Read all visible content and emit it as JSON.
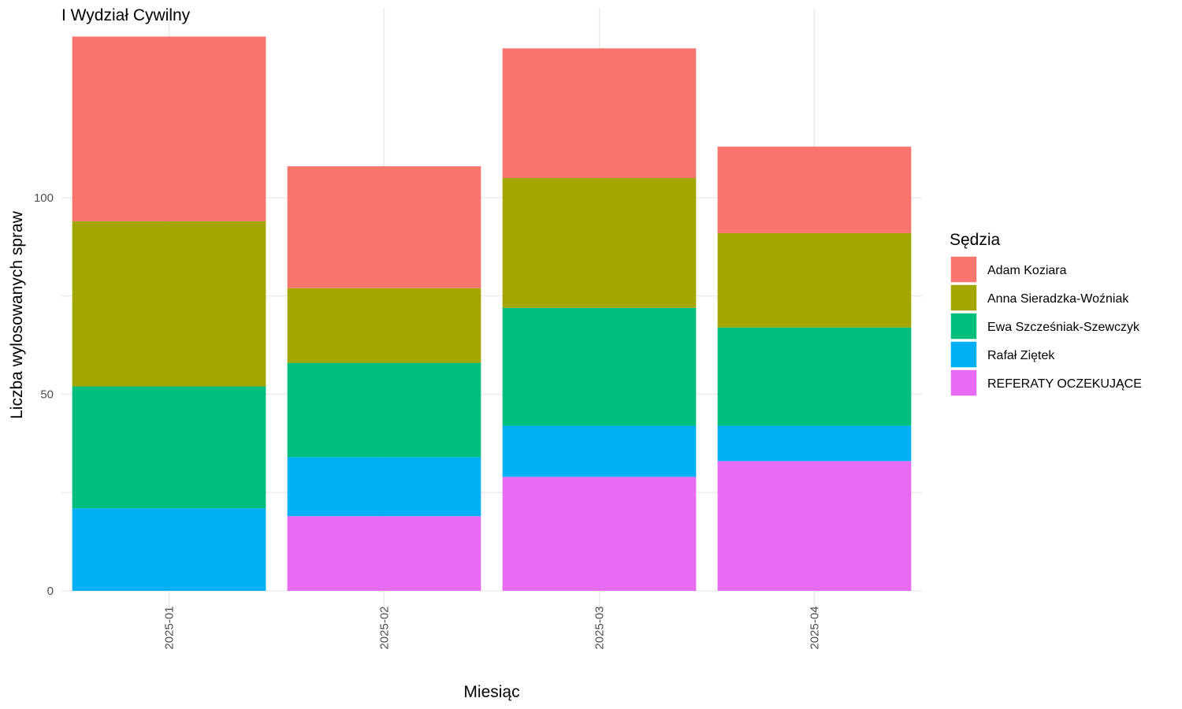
{
  "chart_data": {
    "type": "bar",
    "stacked": true,
    "title": "I Wydział Cywilny",
    "xlabel": "Miesiąc",
    "ylabel": "Liczba wylosowanych spraw",
    "categories": [
      "2025-01",
      "2025-02",
      "2025-03",
      "2025-04"
    ],
    "y_ticks": [
      0,
      50,
      100
    ],
    "y_tick_labels": [
      "0",
      "50",
      "100"
    ],
    "ylim": [
      0,
      145
    ],
    "grid": true,
    "legend": {
      "title": "Sędzia",
      "position": "right"
    },
    "series": [
      {
        "name": "REFERATY OCZEKUJĄCE",
        "color": "#E76BF3",
        "values": [
          0,
          19,
          29,
          33
        ]
      },
      {
        "name": "Rafał Ziętek",
        "color": "#00B0F6",
        "values": [
          21,
          15,
          13,
          9
        ]
      },
      {
        "name": "Ewa Szcześniak-Szewczyk",
        "color": "#00BF7D",
        "values": [
          31,
          24,
          30,
          25
        ]
      },
      {
        "name": "Anna Sieradzka-Woźniak",
        "color": "#A3A500",
        "values": [
          42,
          19,
          33,
          24
        ]
      },
      {
        "name": "Adam Koziara",
        "color": "#F8766D",
        "values": [
          47,
          31,
          33,
          22
        ]
      }
    ],
    "legend_order": [
      "Adam Koziara",
      "Anna Sieradzka-Woźniak",
      "Ewa Szcześniak-Szewczyk",
      "Rafał Ziętek",
      "REFERATY OCZEKUJĄCE"
    ]
  }
}
